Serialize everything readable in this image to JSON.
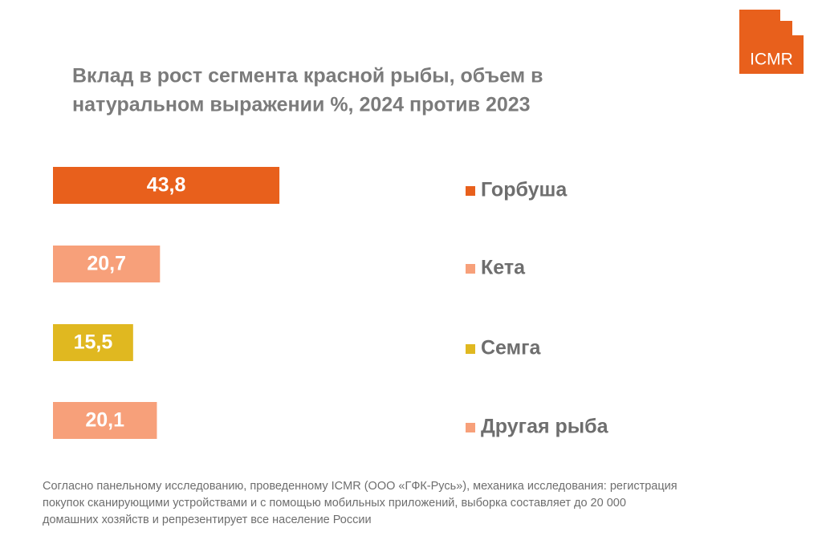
{
  "logo": "ICMR",
  "chart_data": {
    "type": "bar",
    "orientation": "horizontal",
    "title": [
      "Вклад в рост сегмента красной рыбы, объем в",
      "натуральном выражении %, 2024 против 2023"
    ],
    "categories": [
      "Горбуша",
      "Кета",
      "Семга",
      "Другая рыба"
    ],
    "values": [
      43.8,
      20.7,
      15.5,
      20.1
    ],
    "value_labels": [
      "43,8",
      "20,7",
      "15,5",
      "20,1"
    ],
    "colors": [
      "#e8601c",
      "#f7a07a",
      "#e0b820",
      "#f7a07a"
    ],
    "note": [
      "Согласно панельному исследованию, проведенному ICMR (ООО «ГФК-Русь»), механика исследования: регистрация",
      "покупок сканирующими устройствами и с помощью мобильных приложений, выборка составляет до 20 000",
      "домашних хозяйств и репрезентирует все население России"
    ]
  }
}
